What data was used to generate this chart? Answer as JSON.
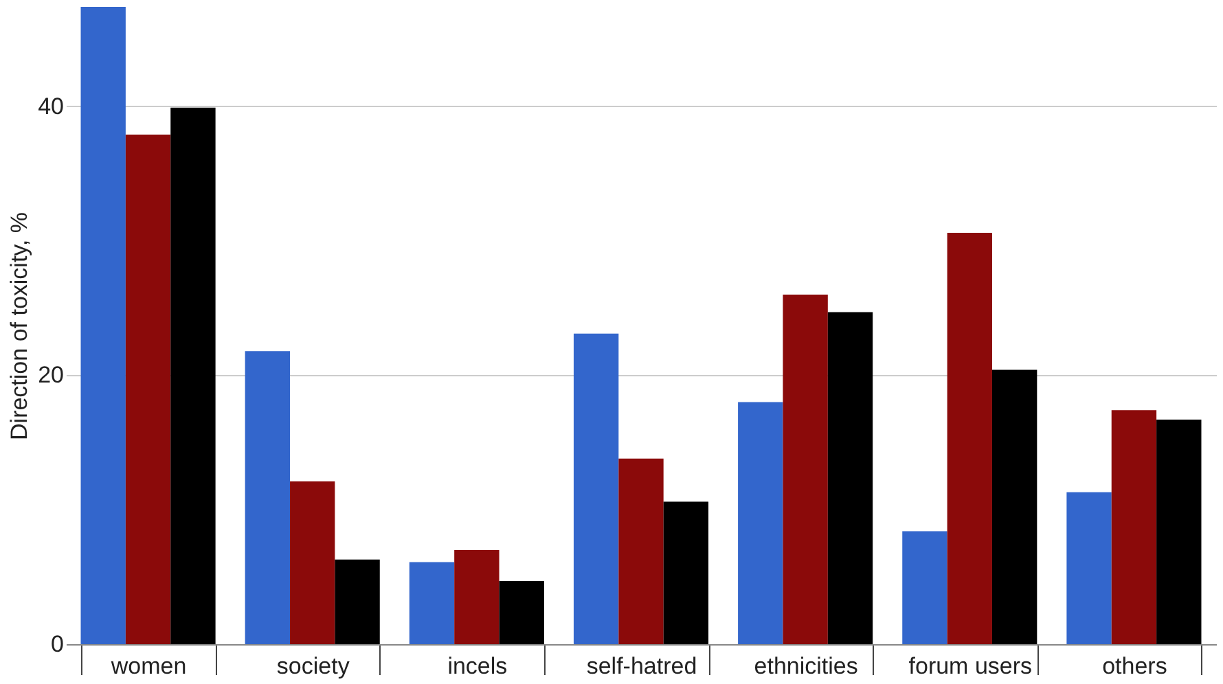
{
  "chart_data": {
    "type": "bar",
    "ylabel": "Direction of toxicity, %",
    "categories": [
      "women",
      "society",
      "incels",
      "self-hatred",
      "ethnicities",
      "forum users",
      "others"
    ],
    "series": [
      {
        "color": "#3366cc",
        "values": [
          47.4,
          21.8,
          6.1,
          23.1,
          18.0,
          8.4,
          11.3
        ]
      },
      {
        "color": "#8b0a0a",
        "values": [
          37.9,
          12.1,
          7.0,
          13.8,
          26.0,
          30.6,
          17.4
        ]
      },
      {
        "color": "#000000",
        "values": [
          39.9,
          6.3,
          4.7,
          10.6,
          24.7,
          20.4,
          16.7
        ]
      }
    ],
    "ylim": [
      0,
      47.4
    ],
    "yticks": [
      0,
      20,
      40
    ],
    "grid": "y",
    "legend": false
  }
}
